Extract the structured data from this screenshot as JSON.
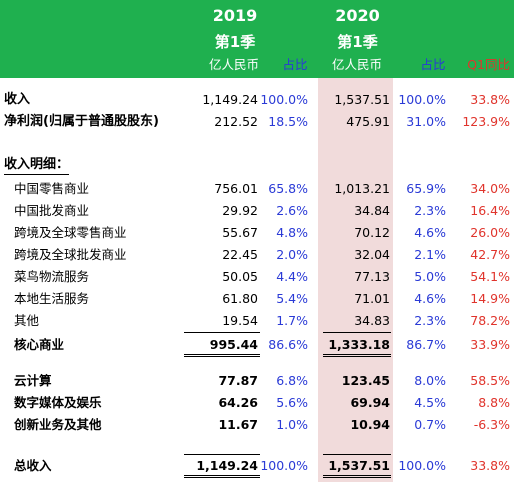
{
  "header": {
    "year_2019": "2019",
    "year_2020": "2020",
    "quarter_2019": "第1季",
    "quarter_2020": "第1季",
    "unit_2019": "亿人民币",
    "unit_2020": "亿人民币",
    "share_2019": "占比",
    "share_2020": "占比",
    "yoy": "Q1同比"
  },
  "rows": {
    "revenue": {
      "label": "收入",
      "v2019": "1,149.24",
      "p2019": "100.0%",
      "v2020": "1,537.51",
      "p2020": "100.0%",
      "yoy": "33.8%"
    },
    "net_profit": {
      "label": "净利润(归属于普通股股东)",
      "v2019": "212.52",
      "p2019": "18.5%",
      "v2020": "475.91",
      "p2020": "31.0%",
      "yoy": "123.9%"
    },
    "detail_title": {
      "label": "收入明细："
    },
    "retail": {
      "label": "中国零售商业",
      "v2019": "756.01",
      "p2019": "65.8%",
      "v2020": "1,013.21",
      "p2020": "65.9%",
      "yoy": "34.0%"
    },
    "wholesale": {
      "label": "中国批发商业",
      "v2019": "29.92",
      "p2019": "2.6%",
      "v2020": "34.84",
      "p2020": "2.3%",
      "yoy": "16.4%"
    },
    "cb_retail": {
      "label": "跨境及全球零售商业",
      "v2019": "55.67",
      "p2019": "4.8%",
      "v2020": "70.12",
      "p2020": "4.6%",
      "yoy": "26.0%"
    },
    "cb_wholesale": {
      "label": "跨境及全球批发商业",
      "v2019": "22.45",
      "p2019": "2.0%",
      "v2020": "32.04",
      "p2020": "2.1%",
      "yoy": "42.7%"
    },
    "cainiao": {
      "label": "菜鸟物流服务",
      "v2019": "50.05",
      "p2019": "4.4%",
      "v2020": "77.13",
      "p2020": "5.0%",
      "yoy": "54.1%"
    },
    "local": {
      "label": "本地生活服务",
      "v2019": "61.80",
      "p2019": "5.4%",
      "v2020": "71.01",
      "p2020": "4.6%",
      "yoy": "14.9%"
    },
    "others": {
      "label": "其他",
      "v2019": "19.54",
      "p2019": "1.7%",
      "v2020": "34.83",
      "p2020": "2.3%",
      "yoy": "78.2%"
    },
    "core": {
      "label": "核心商业",
      "v2019": "995.44",
      "p2019": "86.6%",
      "v2020": "1,333.18",
      "p2020": "86.7%",
      "yoy": "33.9%"
    },
    "cloud": {
      "label": "云计算",
      "v2019": "77.87",
      "p2019": "6.8%",
      "v2020": "123.45",
      "p2020": "8.0%",
      "yoy": "58.5%"
    },
    "media": {
      "label": "数字媒体及娱乐",
      "v2019": "64.26",
      "p2019": "5.6%",
      "v2020": "69.94",
      "p2020": "4.5%",
      "yoy": "8.8%"
    },
    "innovation": {
      "label": "创新业务及其他",
      "v2019": "11.67",
      "p2019": "1.0%",
      "v2020": "10.94",
      "p2020": "0.7%",
      "yoy": "-6.3%"
    },
    "total": {
      "label": "总收入",
      "v2019": "1,149.24",
      "p2019": "100.0%",
      "v2020": "1,537.51",
      "p2020": "100.0%",
      "yoy": "33.8%"
    }
  },
  "colors": {
    "header_band": "#1fb04f",
    "highlight_column": "#f1dbdb",
    "share_text": "#2a3ad6",
    "yoy_text": "#e0342c"
  }
}
